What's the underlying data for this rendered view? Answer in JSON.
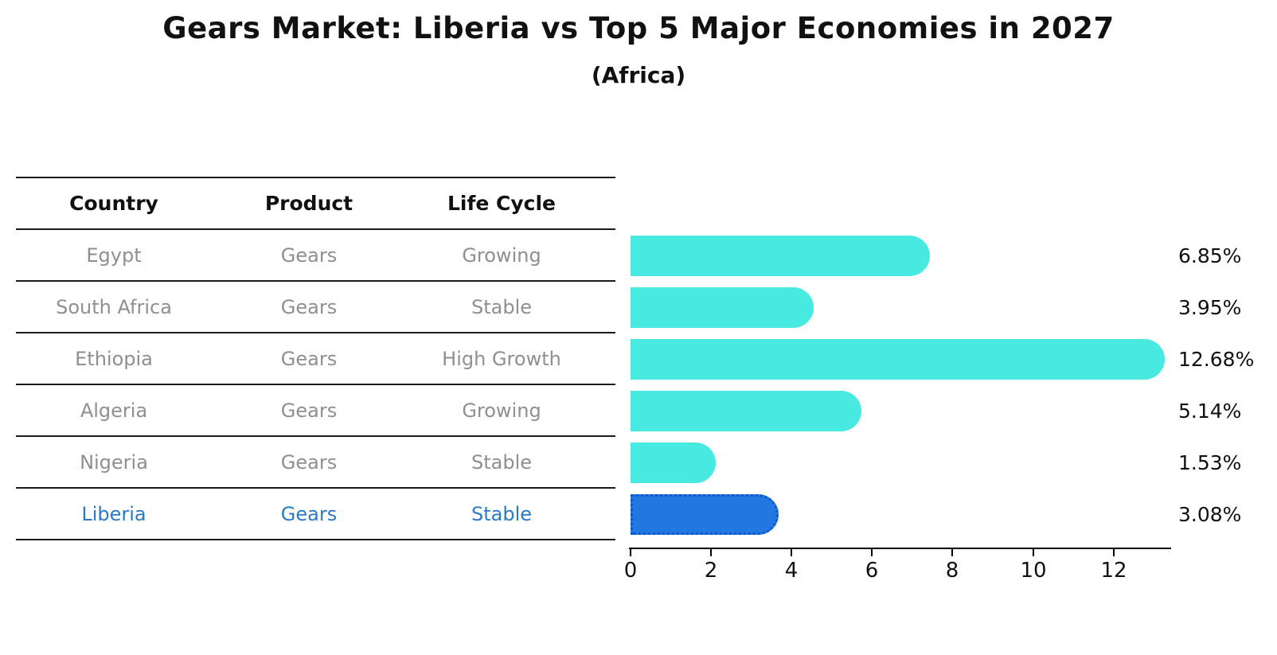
{
  "title": "Gears Market: Liberia vs Top 5 Major Economies in 2027",
  "subtitle": "(Africa)",
  "table": {
    "headers": [
      "Country",
      "Product",
      "Life Cycle"
    ],
    "rows": [
      {
        "country": "Egypt",
        "product": "Gears",
        "life_cycle": "Growing",
        "highlighted": false
      },
      {
        "country": "South Africa",
        "product": "Gears",
        "life_cycle": "Stable",
        "highlighted": false
      },
      {
        "country": "Ethiopia",
        "product": "Gears",
        "life_cycle": "High Growth",
        "highlighted": false
      },
      {
        "country": "Algeria",
        "product": "Gears",
        "life_cycle": "Growing",
        "highlighted": false
      },
      {
        "country": "Nigeria",
        "product": "Gears",
        "life_cycle": "Stable",
        "highlighted": false
      },
      {
        "country": "Liberia",
        "product": "Gears",
        "life_cycle": "Stable",
        "highlighted": true
      }
    ]
  },
  "chart_data": {
    "type": "bar",
    "orientation": "horizontal",
    "title": "Gears Market: Liberia vs Top 5 Major Economies in 2027",
    "subtitle": "(Africa)",
    "categories": [
      "Egypt",
      "South Africa",
      "Ethiopia",
      "Algeria",
      "Nigeria",
      "Liberia"
    ],
    "values": [
      6.85,
      3.95,
      12.68,
      5.14,
      1.53,
      3.08
    ],
    "value_labels": [
      "6.85%",
      "3.95%",
      "12.68%",
      "5.14%",
      "1.53%",
      "3.08%"
    ],
    "xlabel": "",
    "ylabel": "",
    "xlim": [
      0,
      13.4
    ],
    "xticks": [
      0,
      2,
      4,
      6,
      8,
      10,
      12
    ],
    "grid": false,
    "legend": false,
    "highlight_index": 5,
    "bar_color": "#48e9e1",
    "highlight_bar_color": "#2377e0"
  },
  "colors": {
    "bar_cyan": "#48e9e1",
    "bar_blue": "#2377e0",
    "bar_blue_border": "#0b59c9",
    "highlight_text": "#2b79c7",
    "row_text": "#8f8f8f",
    "line": "#1a1a1a"
  }
}
